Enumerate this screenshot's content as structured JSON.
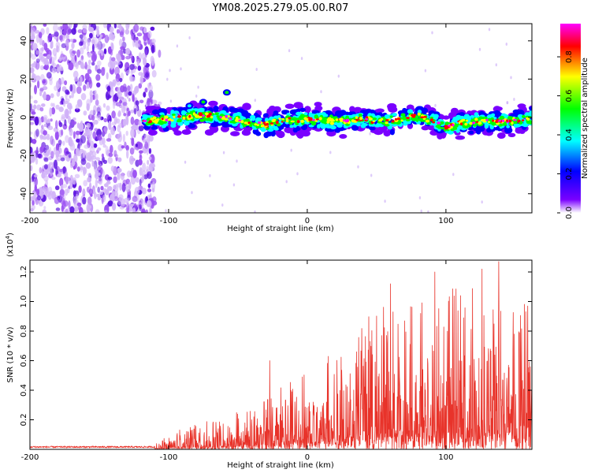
{
  "chart_data": [
    {
      "type": "heatmap",
      "title": "YM08.2025.279.05.00.R07",
      "xlabel": "Height of straight line (km)",
      "ylabel": "Frequency (Hz)",
      "xlim": [
        -200,
        162
      ],
      "ylim": [
        -50,
        49
      ],
      "xticks": [
        -200,
        -100,
        0,
        100
      ],
      "yticks": [
        -40,
        -20,
        0,
        20,
        40
      ],
      "noise_region_x": [
        -200,
        -110
      ],
      "ridge": {
        "x": [
          -118,
          -100,
          -80,
          -60,
          -40,
          -30,
          -20,
          0,
          20,
          40,
          60,
          80,
          90,
          100,
          110,
          125,
          140,
          162
        ],
        "y": [
          -2,
          -1,
          1,
          0,
          -3,
          -4,
          -2,
          -1,
          -2,
          -1,
          -2,
          1,
          -2,
          -5,
          -3,
          -2,
          -2,
          -1
        ]
      },
      "colorbar": {
        "label": "Normalized spectral amplitude",
        "ticks": [
          "0.0",
          "0.2",
          "0.4",
          "0.6",
          "0.8"
        ],
        "range": [
          0,
          0.97
        ],
        "colors": [
          "#ffffff",
          "#7a00ff",
          "#0000ff",
          "#00ffff",
          "#00ff00",
          "#ffff00",
          "#ff0000",
          "#ff00ff"
        ]
      }
    },
    {
      "type": "line",
      "xlabel": "Height of straight line (km)",
      "ylabel": "SNR (10 * v/v)",
      "scale_label": "(x10",
      "scale_exp": "4",
      "scale_close": ")",
      "xlim": [
        -200,
        162
      ],
      "ylim": [
        0,
        1.28
      ],
      "xticks": [
        -200,
        -100,
        0,
        100
      ],
      "yticks": [
        "0.2",
        "0.4",
        "0.6",
        "0.8",
        "1.0",
        "1.2"
      ],
      "color": "#e8332a",
      "envelope": {
        "x": [
          -200,
          -110,
          -100,
          -80,
          -60,
          -40,
          -20,
          0,
          20,
          40,
          60,
          80,
          100,
          120,
          140,
          162
        ],
        "y": [
          0.02,
          0.02,
          0.08,
          0.12,
          0.16,
          0.2,
          0.3,
          0.38,
          0.48,
          0.62,
          0.72,
          0.75,
          0.78,
          0.8,
          0.72,
          0.7
        ]
      },
      "peaks": [
        {
          "x": -27,
          "y": 0.6
        },
        {
          "x": 60,
          "y": 1.12
        },
        {
          "x": 92,
          "y": 1.2
        },
        {
          "x": 138,
          "y": 1.27
        },
        {
          "x": 126,
          "y": 1.22
        },
        {
          "x": 159,
          "y": 0.97
        }
      ]
    }
  ]
}
